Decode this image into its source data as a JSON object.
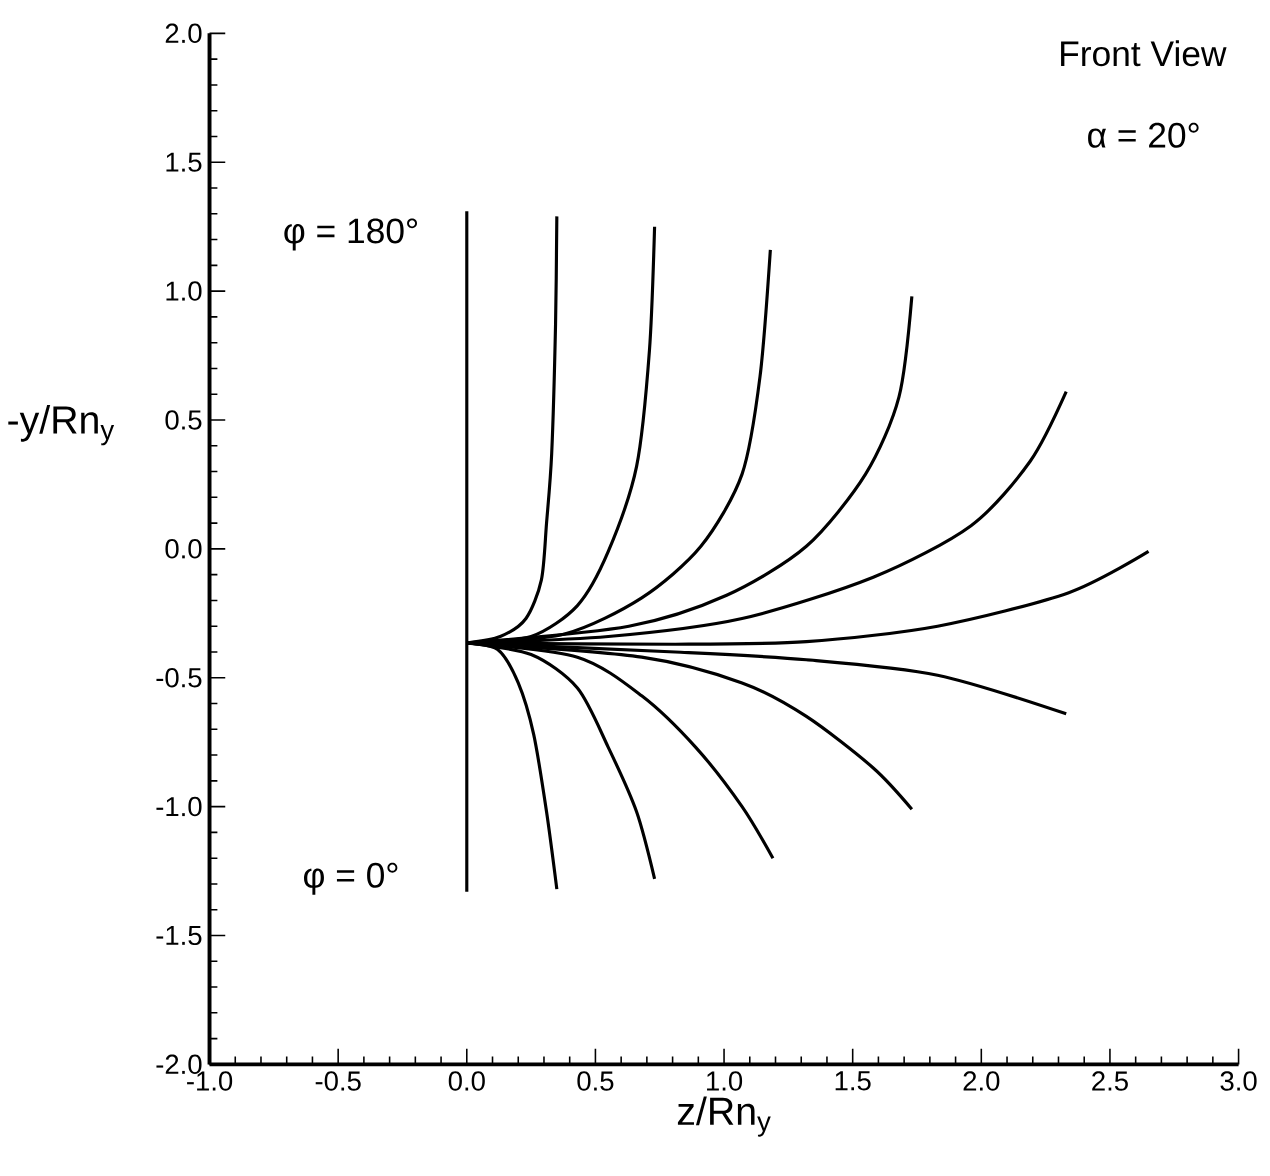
{
  "chart_data": {
    "type": "line",
    "xlabel": "z/Rn$_{y}$",
    "ylabel": "-y/Rn$_{y}$",
    "xlim": [
      -1,
      3
    ],
    "ylim": [
      -2,
      2
    ],
    "xticks": [
      {
        "value": -1,
        "label": "-1.0"
      },
      {
        "value": -0.5,
        "label": "-0.5"
      },
      {
        "value": 0,
        "label": "0.0"
      },
      {
        "value": 0.5,
        "label": "0.5"
      },
      {
        "value": 1,
        "label": "1.0"
      },
      {
        "value": 1.5,
        "label": "1.5"
      },
      {
        "value": 2,
        "label": "2.0"
      },
      {
        "value": 2.5,
        "label": "2.5"
      },
      {
        "value": 3,
        "label": "3.0"
      }
    ],
    "yticks": [
      {
        "value": -2,
        "label": "-2.0"
      },
      {
        "value": -1.5,
        "label": "-1.5"
      },
      {
        "value": -1,
        "label": "-1.0"
      },
      {
        "value": -0.5,
        "label": "-0.5"
      },
      {
        "value": 0,
        "label": "0.0"
      },
      {
        "value": 0.5,
        "label": "0.5"
      },
      {
        "value": 1,
        "label": "1.0"
      },
      {
        "value": 1.5,
        "label": "1.5"
      },
      {
        "value": 2,
        "label": "2.0"
      }
    ],
    "grid": false,
    "marker": "none",
    "line_style": "solid",
    "series": [
      {
        "color": "#000000",
        "x": [
          0,
          0
        ],
        "values": [
          1.31,
          -1.33
        ]
      },
      {
        "color": "#000000",
        "x": [
          0,
          0.13,
          0.23,
          0.29,
          0.31,
          0.33,
          0.345,
          0.35
        ],
        "values": [
          -0.365,
          -0.34,
          -0.27,
          -0.12,
          0.1,
          0.37,
          0.87,
          1.29
        ]
      },
      {
        "color": "#000000",
        "x": [
          0,
          0.25,
          0.43,
          0.55,
          0.66,
          0.71,
          0.73
        ],
        "values": [
          -0.365,
          -0.34,
          -0.22,
          -0.01,
          0.32,
          0.77,
          1.25
        ]
      },
      {
        "color": "#000000",
        "x": [
          0,
          0.38,
          0.68,
          0.91,
          1.07,
          1.14,
          1.18
        ],
        "values": [
          -0.365,
          -0.33,
          -0.19,
          0.01,
          0.29,
          0.67,
          1.16
        ]
      },
      {
        "color": "#000000",
        "x": [
          0,
          0.63,
          1.01,
          1.32,
          1.55,
          1.68,
          1.73
        ],
        "values": [
          -0.365,
          -0.3,
          -0.18,
          0.01,
          0.29,
          0.59,
          0.98
        ]
      },
      {
        "color": "#000000",
        "x": [
          0,
          0.55,
          1.07,
          1.58,
          1.96,
          2.19,
          2.33
        ],
        "values": [
          -0.365,
          -0.34,
          -0.27,
          -0.11,
          0.09,
          0.34,
          0.61
        ]
      },
      {
        "color": "#000000",
        "x": [
          0,
          0.81,
          1.32,
          1.83,
          2.34,
          2.65
        ],
        "values": [
          -0.365,
          -0.37,
          -0.36,
          -0.3,
          -0.17,
          -0.01
        ]
      },
      {
        "color": "#000000",
        "x": [
          0,
          0.81,
          1.32,
          1.83,
          2.33
        ],
        "values": [
          -0.365,
          -0.4,
          -0.43,
          -0.49,
          -0.64
        ]
      },
      {
        "color": "#000000",
        "x": [
          0,
          0.68,
          1.07,
          1.32,
          1.58,
          1.73
        ],
        "values": [
          -0.365,
          -0.42,
          -0.52,
          -0.65,
          -0.85,
          -1.01
        ]
      },
      {
        "color": "#000000",
        "x": [
          0,
          0.43,
          0.68,
          0.89,
          1.07,
          1.19
        ],
        "values": [
          -0.365,
          -0.42,
          -0.57,
          -0.77,
          -1.0,
          -1.2
        ]
      },
      {
        "color": "#000000",
        "x": [
          0,
          0.25,
          0.43,
          0.55,
          0.66,
          0.73
        ],
        "values": [
          -0.365,
          -0.41,
          -0.54,
          -0.77,
          -1.02,
          -1.28
        ]
      },
      {
        "color": "#000000",
        "x": [
          0,
          0.12,
          0.2,
          0.26,
          0.31,
          0.35
        ],
        "values": [
          -0.365,
          -0.39,
          -0.52,
          -0.72,
          -1.02,
          -1.32
        ]
      }
    ],
    "annotations": [
      "Front View",
      "α = 20°",
      "φ = 180°",
      "φ = 0°"
    ]
  }
}
